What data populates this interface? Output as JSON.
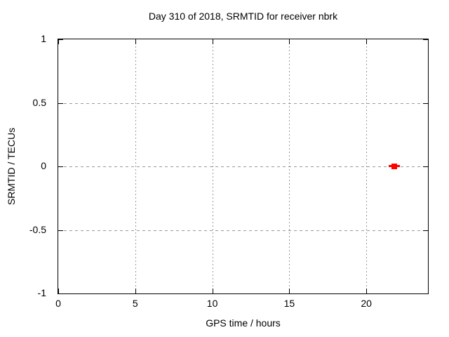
{
  "chart_data": {
    "type": "scatter",
    "title": "Day 310 of 2018, SRMTID for receiver nbrk",
    "xlabel": "GPS time / hours",
    "ylabel": "SRMTID / TECUs",
    "xlim": [
      0,
      24
    ],
    "ylim": [
      -1,
      1
    ],
    "xticks": [
      {
        "value": 0,
        "label": "0"
      },
      {
        "value": 5,
        "label": "5"
      },
      {
        "value": 10,
        "label": "10"
      },
      {
        "value": 15,
        "label": "15"
      },
      {
        "value": 20,
        "label": "20"
      }
    ],
    "yticks": [
      {
        "value": 1,
        "label": "1"
      },
      {
        "value": 0.5,
        "label": "0.5"
      },
      {
        "value": 0,
        "label": "0"
      },
      {
        "value": -0.5,
        "label": "-0.5"
      },
      {
        "value": -1,
        "label": "-1"
      }
    ],
    "grid": true,
    "legend": "none",
    "series": [
      {
        "name": "SRMTID",
        "marker": "filled-square-with-horizontal-bar",
        "color": "#ff0000",
        "points": [
          {
            "x": 21.8,
            "y": 0.0
          }
        ]
      }
    ],
    "colors": {
      "background": "#ffffff",
      "axis": "#000000",
      "text": "#000000",
      "grid": "#999999",
      "point": "#ff0000"
    }
  }
}
